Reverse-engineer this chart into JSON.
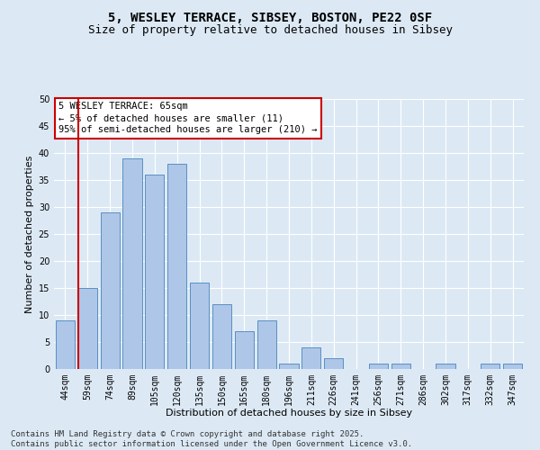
{
  "title_line1": "5, WESLEY TERRACE, SIBSEY, BOSTON, PE22 0SF",
  "title_line2": "Size of property relative to detached houses in Sibsey",
  "xlabel": "Distribution of detached houses by size in Sibsey",
  "ylabel": "Number of detached properties",
  "categories": [
    "44sqm",
    "59sqm",
    "74sqm",
    "89sqm",
    "105sqm",
    "120sqm",
    "135sqm",
    "150sqm",
    "165sqm",
    "180sqm",
    "196sqm",
    "211sqm",
    "226sqm",
    "241sqm",
    "256sqm",
    "271sqm",
    "286sqm",
    "302sqm",
    "317sqm",
    "332sqm",
    "347sqm"
  ],
  "values": [
    9,
    15,
    29,
    39,
    36,
    38,
    16,
    12,
    7,
    9,
    1,
    4,
    2,
    0,
    1,
    1,
    0,
    1,
    0,
    1,
    1
  ],
  "bar_color": "#aec6e8",
  "bar_edge_color": "#5a8fc2",
  "vline_index": 1,
  "vline_color": "#cc0000",
  "annotation_text": "5 WESLEY TERRACE: 65sqm\n← 5% of detached houses are smaller (11)\n95% of semi-detached houses are larger (210) →",
  "annotation_box_color": "#ffffff",
  "annotation_box_edge": "#cc0000",
  "background_color": "#dce9f5",
  "plot_bg_color": "#dce9f5",
  "grid_color": "#ffffff",
  "ylim": [
    0,
    50
  ],
  "yticks": [
    0,
    5,
    10,
    15,
    20,
    25,
    30,
    35,
    40,
    45,
    50
  ],
  "footer_text": "Contains HM Land Registry data © Crown copyright and database right 2025.\nContains public sector information licensed under the Open Government Licence v3.0.",
  "title_fontsize": 10,
  "subtitle_fontsize": 9,
  "tick_fontsize": 7,
  "label_fontsize": 8,
  "annotation_fontsize": 7.5,
  "footer_fontsize": 6.5
}
